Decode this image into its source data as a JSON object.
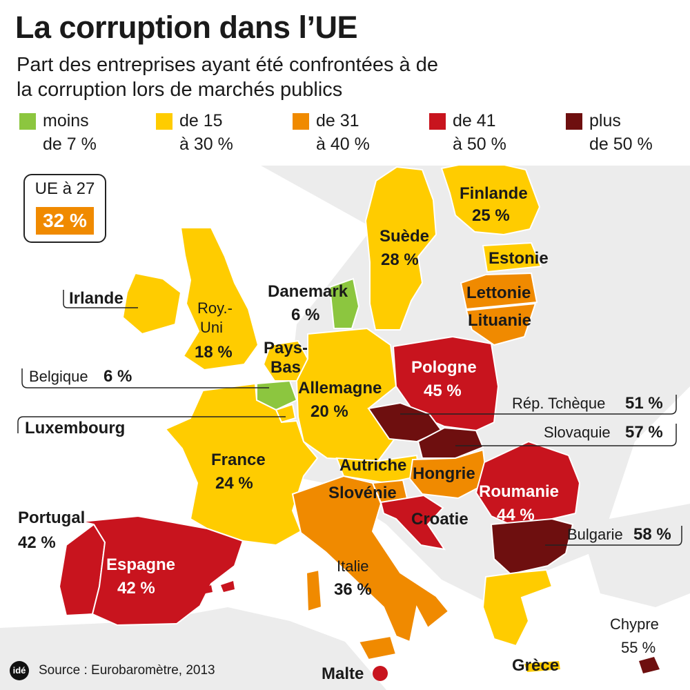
{
  "title": "La corruption dans l’UE",
  "subtitle": "Part des entreprises ayant été confrontées à de la corruption lors de marchés publics",
  "legend": [
    {
      "line1": "moins",
      "line2": "de 7 %",
      "color": "#8cc63f"
    },
    {
      "line1": "de 15",
      "line2": "à 30 %",
      "color": "#ffcc00"
    },
    {
      "line1": "de 31",
      "line2": "à 40 %",
      "color": "#f08a00"
    },
    {
      "line1": "de 41",
      "line2": "à 50 %",
      "color": "#c8141e"
    },
    {
      "line1": "plus",
      "line2": "de 50 %",
      "color": "#6e0f0f"
    }
  ],
  "eu_average": {
    "label": "UE à 27",
    "value": "32 %"
  },
  "countries": {
    "finlande": {
      "name": "Finlande",
      "value": "25 %"
    },
    "suede": {
      "name": "Suède",
      "value": "28 %"
    },
    "estonie": {
      "name": "Estonie"
    },
    "lettonie": {
      "name": "Lettonie"
    },
    "lituanie": {
      "name": "Lituanie"
    },
    "irlande": {
      "name": "Irlande"
    },
    "royaume_uni": {
      "name1": "Roy.-",
      "name2": "Uni",
      "value": "18 %"
    },
    "danemark": {
      "name": "Danemark",
      "value": "6 %"
    },
    "pays_bas": {
      "name1": "Pays-",
      "name2": "Bas"
    },
    "belgique": {
      "name": "Belgique",
      "value": "6 %"
    },
    "allemagne": {
      "name": "Allemagne",
      "value": "20 %"
    },
    "pologne": {
      "name": "Pologne",
      "value": "45 %"
    },
    "rep_tcheque": {
      "name": "Rép. Tchèque",
      "value": "51 %"
    },
    "luxembourg": {
      "name": "Luxembourg"
    },
    "slovaquie": {
      "name": "Slovaquie",
      "value": "57 %"
    },
    "france": {
      "name": "France",
      "value": "24 %"
    },
    "autriche": {
      "name": "Autriche"
    },
    "hongrie": {
      "name": "Hongrie"
    },
    "slovenie": {
      "name": "Slovénie"
    },
    "roumanie": {
      "name": "Roumanie",
      "value": "44 %"
    },
    "croatie": {
      "name": "Croatie"
    },
    "portugal": {
      "name": "Portugal",
      "value": "42 %"
    },
    "espagne": {
      "name": "Espagne",
      "value": "42 %"
    },
    "italie": {
      "name": "Italie",
      "value": "36 %"
    },
    "bulgarie": {
      "name": "Bulgarie",
      "value": "58 %"
    },
    "chypre": {
      "name": "Chypre",
      "value": "55 %"
    },
    "malte": {
      "name": "Malte"
    },
    "grece": {
      "name": "Grèce"
    }
  },
  "footer": {
    "logo": "idé",
    "source": "Source : Eurobaromètre, 2013"
  }
}
